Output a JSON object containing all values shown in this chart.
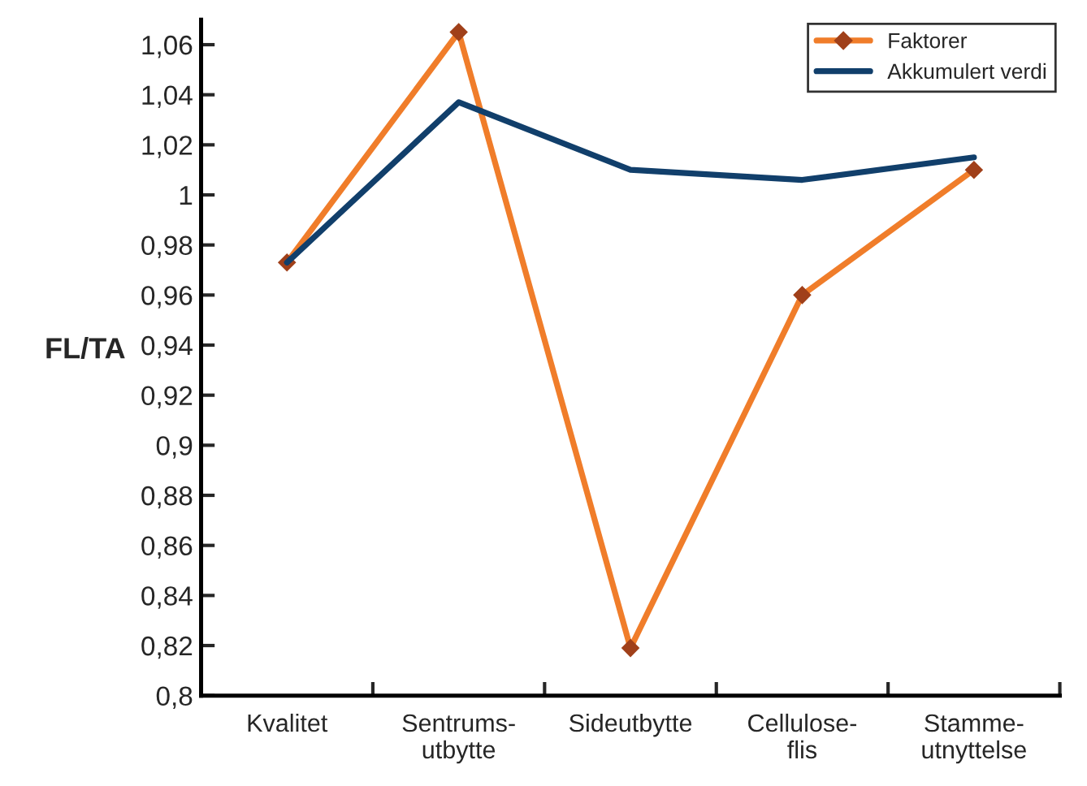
{
  "chart_data": {
    "type": "line",
    "ylabel": "FL/TA",
    "categories": [
      "Kvalitet",
      "Sentrums-\nutbytte",
      "Sideutbytte",
      "Cellulose-\nflis",
      "Stamme-\nutnyttelse"
    ],
    "series": [
      {
        "name": "Faktorer",
        "color": "#f07d2a",
        "marker": "diamond",
        "values": [
          0.973,
          1.065,
          0.819,
          0.96,
          1.01
        ]
      },
      {
        "name": "Akkumulert verdi",
        "color": "#113f6b",
        "marker": "none",
        "values": [
          0.973,
          1.037,
          1.01,
          1.006,
          1.015
        ]
      }
    ],
    "ylim": [
      0.8,
      1.07
    ],
    "yticks": [
      {
        "value": 0.8,
        "label": "0,8"
      },
      {
        "value": 0.82,
        "label": "0,82"
      },
      {
        "value": 0.84,
        "label": "0,84"
      },
      {
        "value": 0.86,
        "label": "0,86"
      },
      {
        "value": 0.88,
        "label": "0,88"
      },
      {
        "value": 0.9,
        "label": "0,9"
      },
      {
        "value": 0.92,
        "label": "0,92"
      },
      {
        "value": 0.94,
        "label": "0,94"
      },
      {
        "value": 0.96,
        "label": "0,96"
      },
      {
        "value": 0.98,
        "label": "0,98"
      },
      {
        "value": 1,
        "label": "1"
      },
      {
        "value": 1.02,
        "label": "1,02"
      },
      {
        "value": 1.04,
        "label": "1,04"
      },
      {
        "value": 1.06,
        "label": "1,06"
      }
    ],
    "grid": false,
    "legend": "top right",
    "line_style": "solid"
  }
}
